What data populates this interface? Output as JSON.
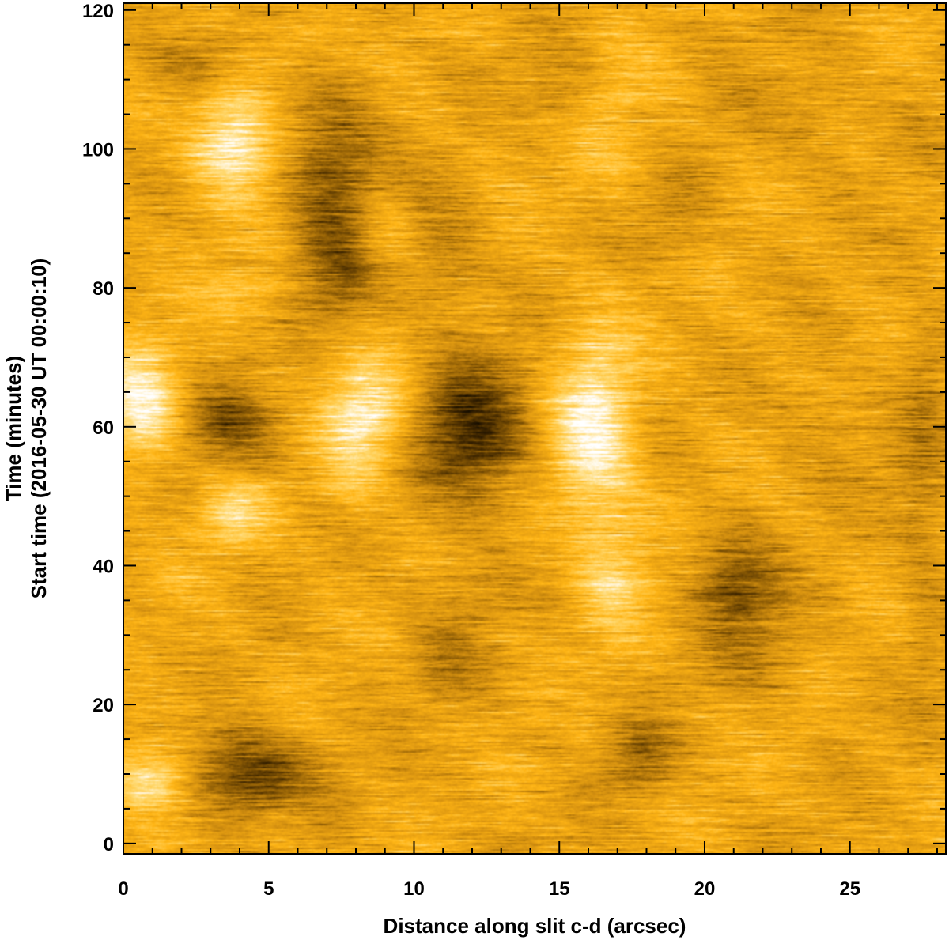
{
  "chart_data": {
    "type": "heatmap",
    "title": "",
    "xlabel": "Distance along slit c-d (arcsec)",
    "ylabel_lines": [
      "Time (minutes)",
      "Start time (2016-05-30 UT 00:00:10)"
    ],
    "xlim": [
      0,
      28.3
    ],
    "ylim": [
      -1.5,
      121
    ],
    "x_major_ticks": [
      0,
      5,
      10,
      15,
      20,
      25
    ],
    "x_minor_step": 1,
    "y_major_ticks": [
      0,
      20,
      40,
      60,
      80,
      100,
      120
    ],
    "y_minor_step": 5,
    "colormap": [
      "#000000",
      "#3a2300",
      "#8a5a05",
      "#d49010",
      "#ffb515",
      "#ffd970",
      "#ffffff"
    ],
    "features": [
      {
        "x": 12.0,
        "y": 59.0,
        "sx": 1.3,
        "sy": 7.0,
        "amp": -1.7
      },
      {
        "x": 11.0,
        "y": 85.0,
        "sx": 1.0,
        "sy": 6.0,
        "amp": -0.6
      },
      {
        "x": 11.5,
        "y": 35.0,
        "sx": 1.0,
        "sy": 5.0,
        "amp": -0.4
      },
      {
        "x": 16.2,
        "y": 59.0,
        "sx": 1.0,
        "sy": 9.5,
        "amp": 1.5
      },
      {
        "x": 16.8,
        "y": 38.0,
        "sx": 0.8,
        "sy": 6.0,
        "amp": 0.8
      },
      {
        "x": 16.5,
        "y": 105.0,
        "sx": 1.2,
        "sy": 8.0,
        "amp": 0.5
      },
      {
        "x": 8.4,
        "y": 62.0,
        "sx": 1.0,
        "sy": 5.0,
        "amp": 1.4
      },
      {
        "x": 8.8,
        "y": 88.0,
        "sx": 0.8,
        "sy": 4.0,
        "amp": 0.7
      },
      {
        "x": 7.8,
        "y": 53.0,
        "sx": 0.8,
        "sy": 4.0,
        "amp": 0.5
      },
      {
        "x": 3.8,
        "y": 101.5,
        "sx": 1.0,
        "sy": 6.0,
        "amp": 1.6
      },
      {
        "x": 3.8,
        "y": 47.0,
        "sx": 0.8,
        "sy": 3.0,
        "amp": 1.0
      },
      {
        "x": 4.2,
        "y": 79.0,
        "sx": 1.0,
        "sy": 3.0,
        "amp": 0.5
      },
      {
        "x": 0.7,
        "y": 63.0,
        "sx": 0.9,
        "sy": 6.0,
        "amp": 1.5
      },
      {
        "x": 1.0,
        "y": 9.5,
        "sx": 1.0,
        "sy": 3.5,
        "amp": 1.5
      },
      {
        "x": 7.2,
        "y": 98.0,
        "sx": 1.2,
        "sy": 8.0,
        "amp": -1.2
      },
      {
        "x": 7.5,
        "y": 82.0,
        "sx": 1.0,
        "sy": 6.0,
        "amp": -0.9
      },
      {
        "x": 3.8,
        "y": 60.0,
        "sx": 1.3,
        "sy": 4.0,
        "amp": -1.1
      },
      {
        "x": 4.2,
        "y": 10.0,
        "sx": 1.6,
        "sy": 4.0,
        "amp": -1.6
      },
      {
        "x": 21.0,
        "y": 37.5,
        "sx": 1.0,
        "sy": 5.0,
        "amp": -1.2
      },
      {
        "x": 17.8,
        "y": 12.5,
        "sx": 0.8,
        "sy": 3.5,
        "amp": -0.9
      },
      {
        "x": 15.2,
        "y": 108.0,
        "sx": 1.0,
        "sy": 5.0,
        "amp": -0.6
      },
      {
        "x": 2.5,
        "y": 113.0,
        "sx": 1.5,
        "sy": 4.0,
        "amp": -0.6
      },
      {
        "x": 19.2,
        "y": 90.0,
        "sx": 1.0,
        "sy": 5.0,
        "amp": -0.4
      },
      {
        "x": 22.0,
        "y": 28.0,
        "sx": 1.5,
        "sy": 5.0,
        "amp": -0.4
      },
      {
        "x": 11.0,
        "y": 25.0,
        "sx": 1.0,
        "sy": 3.5,
        "amp": -0.5
      },
      {
        "x": 24.0,
        "y": 60.0,
        "sx": 1.5,
        "sy": 6.0,
        "amp": -0.3
      },
      {
        "x": 6.0,
        "y": 115.0,
        "sx": 1.0,
        "sy": 3.0,
        "amp": 0.5
      },
      {
        "x": 27.5,
        "y": 55.0,
        "sx": 0.6,
        "sy": 20.0,
        "amp": -0.5
      },
      {
        "x": 23.5,
        "y": 104.0,
        "sx": 1.5,
        "sy": 6.0,
        "amp": -0.3
      }
    ]
  }
}
